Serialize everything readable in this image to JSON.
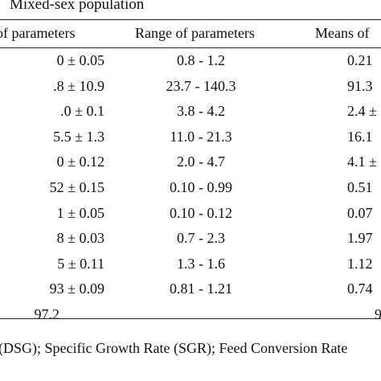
{
  "table": {
    "group_title": "Mixed-sex population",
    "headers": {
      "col1": "of parameters",
      "col2": "Range of parameters",
      "col3": "Means of"
    },
    "rows": [
      {
        "c1": "0 ± 0.05",
        "c2": "0.8 - 1.2",
        "c3": "0.21"
      },
      {
        "c1": ".8 ± 10.9",
        "c2": "23.7 - 140.3",
        "c3": "91.3"
      },
      {
        "c1": ".0 ± 0.1",
        "c2": "3.8 - 4.2",
        "c3": "2.4 ±"
      },
      {
        "c1": "5.5 ± 1.3",
        "c2": "11.0 - 21.3",
        "c3": "16.1"
      },
      {
        "c1": "0 ± 0.12",
        "c2": "2.0 - 4.7",
        "c3": "4.1 ±"
      },
      {
        "c1": "52 ± 0.15",
        "c2": "0.10 - 0.99",
        "c3": "0.51"
      },
      {
        "c1": "1 ± 0.05",
        "c2": "0.10 - 0.12",
        "c3": "0.07"
      },
      {
        "c1": "8 ± 0.03",
        "c2": "0.7 - 2.3",
        "c3": "1.97"
      },
      {
        "c1": "5 ± 0.11",
        "c2": "1.3 - 1.6",
        "c3": "1.12"
      },
      {
        "c1": "93 ± 0.09",
        "c2": "0.81 - 1.21",
        "c3": "0.74"
      }
    ],
    "tail_row": {
      "c1": "97.2",
      "c2": "",
      "c3": "9"
    },
    "footnote": "(DSG); Specific Growth Rate (SGR); Feed Conversion Rate"
  }
}
